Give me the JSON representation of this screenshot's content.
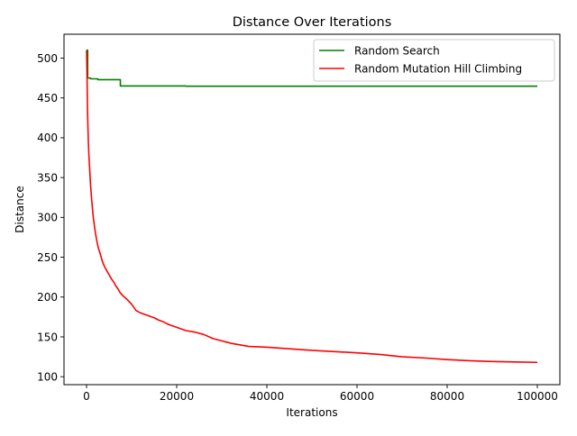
{
  "chart_data": {
    "type": "line",
    "title": "Distance Over Iterations",
    "xlabel": "Iterations",
    "ylabel": "Distance",
    "xlim": [
      -5000,
      105000
    ],
    "ylim": [
      90,
      530
    ],
    "xticks": [
      0,
      20000,
      40000,
      60000,
      80000,
      100000
    ],
    "xtick_labels": [
      "0",
      "20000",
      "40000",
      "60000",
      "80000",
      "100000"
    ],
    "yticks": [
      100,
      150,
      200,
      250,
      300,
      350,
      400,
      450,
      500
    ],
    "ytick_labels": [
      "100",
      "150",
      "200",
      "250",
      "300",
      "350",
      "400",
      "450",
      "500"
    ],
    "grid": false,
    "legend_position": "top-right",
    "series": [
      {
        "name": "Random Search",
        "color": "#008000",
        "step": true,
        "x": [
          0,
          250,
          900,
          2500,
          7500,
          22000,
          100000
        ],
        "y": [
          510,
          475,
          474,
          473,
          465,
          464.8,
          464.8
        ]
      },
      {
        "name": "Random Mutation Hill Climbing",
        "color": "#ff0000",
        "step": false,
        "x": [
          0,
          100,
          200,
          300,
          400,
          500,
          700,
          900,
          1100,
          1300,
          1500,
          1800,
          2100,
          2400,
          2700,
          3000,
          3500,
          4000,
          4500,
          5000,
          5500,
          6000,
          6500,
          7000,
          7500,
          8000,
          9000,
          10000,
          11000,
          12000,
          13000,
          14000,
          15000,
          16000,
          17000,
          18000,
          19000,
          20000,
          21000,
          22000,
          24000,
          26000,
          28000,
          30000,
          32000,
          34000,
          36000,
          40000,
          45000,
          50000,
          55000,
          60000,
          65000,
          70000,
          75000,
          80000,
          85000,
          90000,
          95000,
          100000
        ],
        "y": [
          510,
          480,
          440,
          415,
          395,
          380,
          360,
          340,
          325,
          312,
          300,
          287,
          276,
          267,
          260,
          255,
          245,
          238,
          233,
          228,
          223,
          219,
          214,
          210,
          205,
          202,
          197,
          191,
          183,
          180,
          178,
          176,
          174,
          171,
          169,
          166,
          164,
          162,
          160,
          158,
          156,
          153,
          148,
          145,
          142,
          140,
          138,
          137,
          135,
          133,
          131.5,
          130,
          128,
          125,
          123.5,
          121.5,
          120,
          119,
          118.5,
          118
        ]
      }
    ]
  }
}
